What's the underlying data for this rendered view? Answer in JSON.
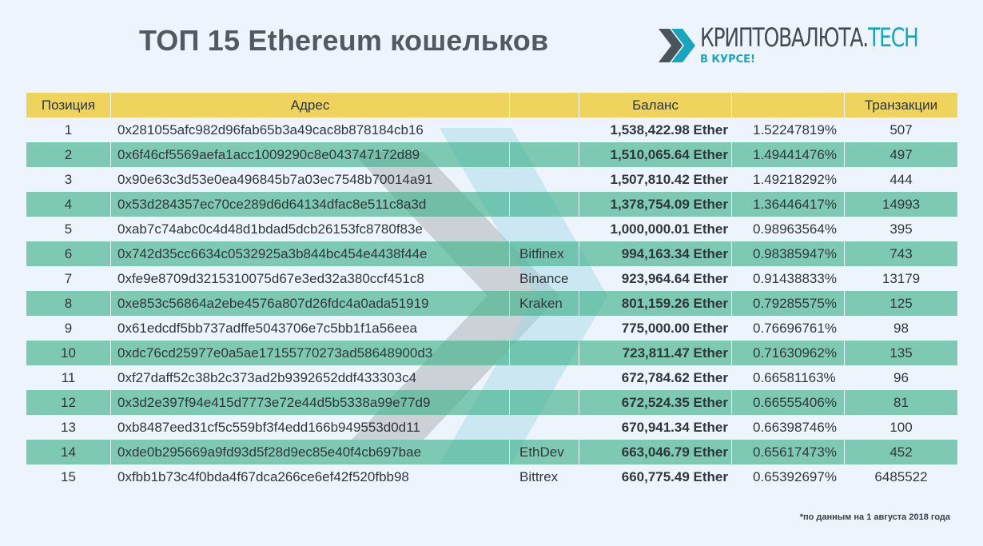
{
  "title": "ТОП 15 Ethereum кошельков",
  "logo": {
    "word_main": "КРИПТОВАЛЮТА.",
    "word_accent": "TECH",
    "tagline": "В КУРСЕ!"
  },
  "colors": {
    "header_bg": "#eed45d",
    "row_stripe": "#79c7ac",
    "accent": "#17a6bd",
    "background": "#eef4fb"
  },
  "table": {
    "headers": {
      "position": "Позиция",
      "address": "Адрес",
      "label": "",
      "balance": "Баланс",
      "percent": "",
      "transactions": "Транзакции"
    },
    "rows": [
      {
        "pos": "1",
        "address": "0x281055afc982d96fab65b3a49cac8b878184cb16",
        "label": "",
        "balance": "1,538,422.98 Ether",
        "percent": "1.52247819%",
        "tx": "507"
      },
      {
        "pos": "2",
        "address": "0x6f46cf5569aefa1acc1009290c8e043747172d89",
        "label": "",
        "balance": "1,510,065.64 Ether",
        "percent": "1.49441476%",
        "tx": "497"
      },
      {
        "pos": "3",
        "address": "0x90e63c3d53e0ea496845b7a03ec7548b70014a91",
        "label": "",
        "balance": "1,507,810.42 Ether",
        "percent": "1.49218292%",
        "tx": "444"
      },
      {
        "pos": "4",
        "address": "0x53d284357ec70ce289d6d64134dfac8e511c8a3d",
        "label": "",
        "balance": "1,378,754.09 Ether",
        "percent": "1.36446417%",
        "tx": "14993"
      },
      {
        "pos": "5",
        "address": "0xab7c74abc0c4d48d1bdad5dcb26153fc8780f83e",
        "label": "",
        "balance": "1,000,000.01 Ether",
        "percent": "0.98963564%",
        "tx": "395"
      },
      {
        "pos": "6",
        "address": "0x742d35cc6634c0532925a3b844bc454e4438f44e",
        "label": "Bitfinex",
        "balance": "994,163.34 Ether",
        "percent": "0.98385947%",
        "tx": "743"
      },
      {
        "pos": "7",
        "address": "0xfe9e8709d3215310075d67e3ed32a380ccf451c8",
        "label": "Binance",
        "balance": "923,964.64 Ether",
        "percent": "0.91438833%",
        "tx": "13179"
      },
      {
        "pos": "8",
        "address": "0xe853c56864a2ebe4576a807d26fdc4a0ada51919",
        "label": "Kraken",
        "balance": "801,159.26 Ether",
        "percent": "0.79285575%",
        "tx": "125"
      },
      {
        "pos": "9",
        "address": "0x61edcdf5bb737adffe5043706e7c5bb1f1a56eea",
        "label": "",
        "balance": "775,000.00 Ether",
        "percent": "0.76696761%",
        "tx": "98"
      },
      {
        "pos": "10",
        "address": "0xdc76cd25977e0a5ae17155770273ad58648900d3",
        "label": "",
        "balance": "723,811.47 Ether",
        "percent": "0.71630962%",
        "tx": "135"
      },
      {
        "pos": "11",
        "address": "0xf27daff52c38b2c373ad2b9392652ddf433303c4",
        "label": "",
        "balance": "672,784.62 Ether",
        "percent": "0.66581163%",
        "tx": "96"
      },
      {
        "pos": "12",
        "address": "0x3d2e397f94e415d7773e72e44d5b5338a99e77d9",
        "label": "",
        "balance": "672,524.35 Ether",
        "percent": "0.66555406%",
        "tx": "81"
      },
      {
        "pos": "13",
        "address": "0xb8487eed31cf5c559bf3f4edd166b949553d0d11",
        "label": "",
        "balance": "670,941.34 Ether",
        "percent": "0.66398746%",
        "tx": "100"
      },
      {
        "pos": "14",
        "address": "0xde0b295669a9fd93d5f28d9ec85e40f4cb697bae",
        "label": "EthDev",
        "balance": "663,046.79 Ether",
        "percent": "0.65617473%",
        "tx": "452"
      },
      {
        "pos": "15",
        "address": "0xfbb1b73c4f0bda4f67dca266ce6ef42f520fbb98",
        "label": "Bittrex",
        "balance": "660,775.49 Ether",
        "percent": "0.65392697%",
        "tx": "6485522"
      }
    ]
  },
  "footnote": "*по данным на 1 августа 2018 года"
}
